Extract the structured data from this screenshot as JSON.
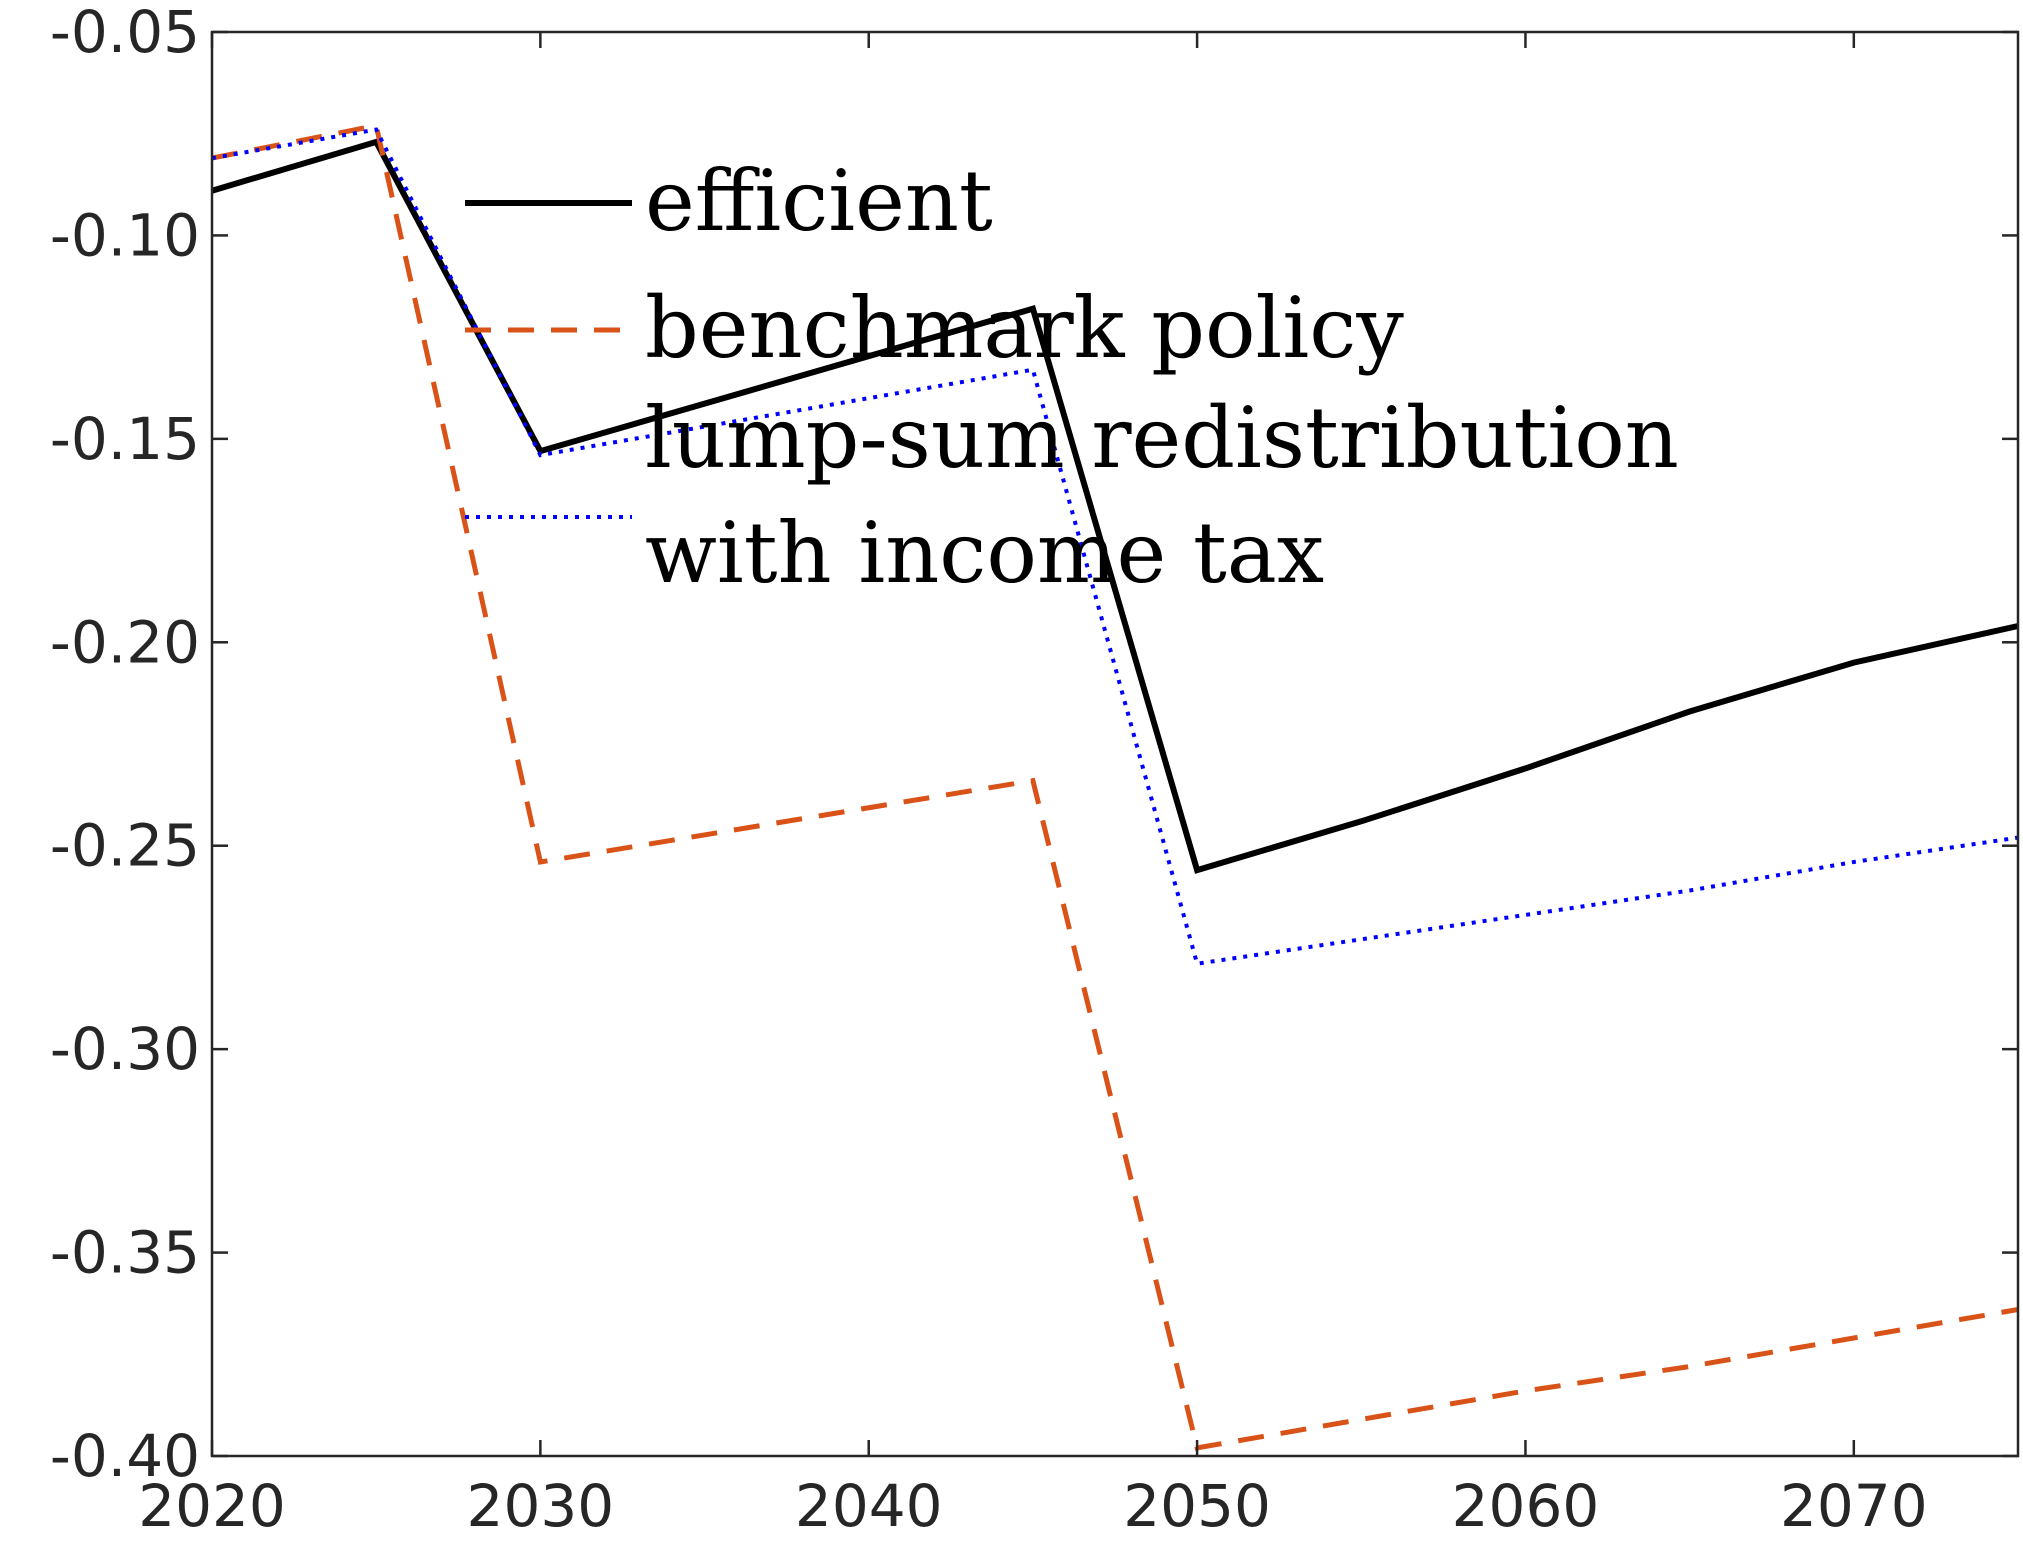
{
  "chart_data": {
    "type": "line",
    "title": "",
    "xlabel": "",
    "ylabel": "",
    "xlim": [
      2020,
      2075
    ],
    "ylim": [
      -0.4,
      -0.05
    ],
    "x_ticks": [
      2020,
      2030,
      2040,
      2050,
      2060,
      2070
    ],
    "x_tick_labels": [
      "2020",
      "2030",
      "2040",
      "2050",
      "2060",
      "2070"
    ],
    "y_ticks": [
      -0.05,
      -0.1,
      -0.15,
      -0.2,
      -0.25,
      -0.3,
      -0.35,
      -0.4
    ],
    "y_tick_labels": [
      "-0.05",
      "-0.10",
      "-0.15",
      "-0.20",
      "-0.25",
      "-0.30",
      "-0.35",
      "-0.40"
    ],
    "grid": false,
    "legend_position": "top-center",
    "series": [
      {
        "name": "efficient",
        "color": "#000000",
        "style": "solid",
        "x": [
          2020,
          2025,
          2030,
          2045,
          2050,
          2055,
          2060,
          2065,
          2070,
          2075
        ],
        "y": [
          -0.089,
          -0.077,
          -0.153,
          -0.118,
          -0.256,
          -0.244,
          -0.231,
          -0.217,
          -0.205,
          -0.196
        ]
      },
      {
        "name": "benchmark policy",
        "color": "#D95319",
        "style": "dashed",
        "x": [
          2020,
          2025,
          2030,
          2045,
          2050,
          2055,
          2060,
          2065,
          2070,
          2075
        ],
        "y": [
          -0.081,
          -0.073,
          -0.254,
          -0.234,
          -0.398,
          -0.391,
          -0.384,
          -0.378,
          -0.371,
          -0.364
        ]
      },
      {
        "name": "lump-sum redistribution with income tax",
        "legend_lines": [
          "lump-sum redistribution",
          "with income tax"
        ],
        "color": "#0000FF",
        "style": "dotted",
        "x": [
          2020,
          2025,
          2030,
          2045,
          2050,
          2055,
          2060,
          2065,
          2070,
          2075
        ],
        "y": [
          -0.081,
          -0.074,
          -0.154,
          -0.133,
          -0.279,
          -0.273,
          -0.267,
          -0.261,
          -0.254,
          -0.248
        ]
      }
    ]
  }
}
